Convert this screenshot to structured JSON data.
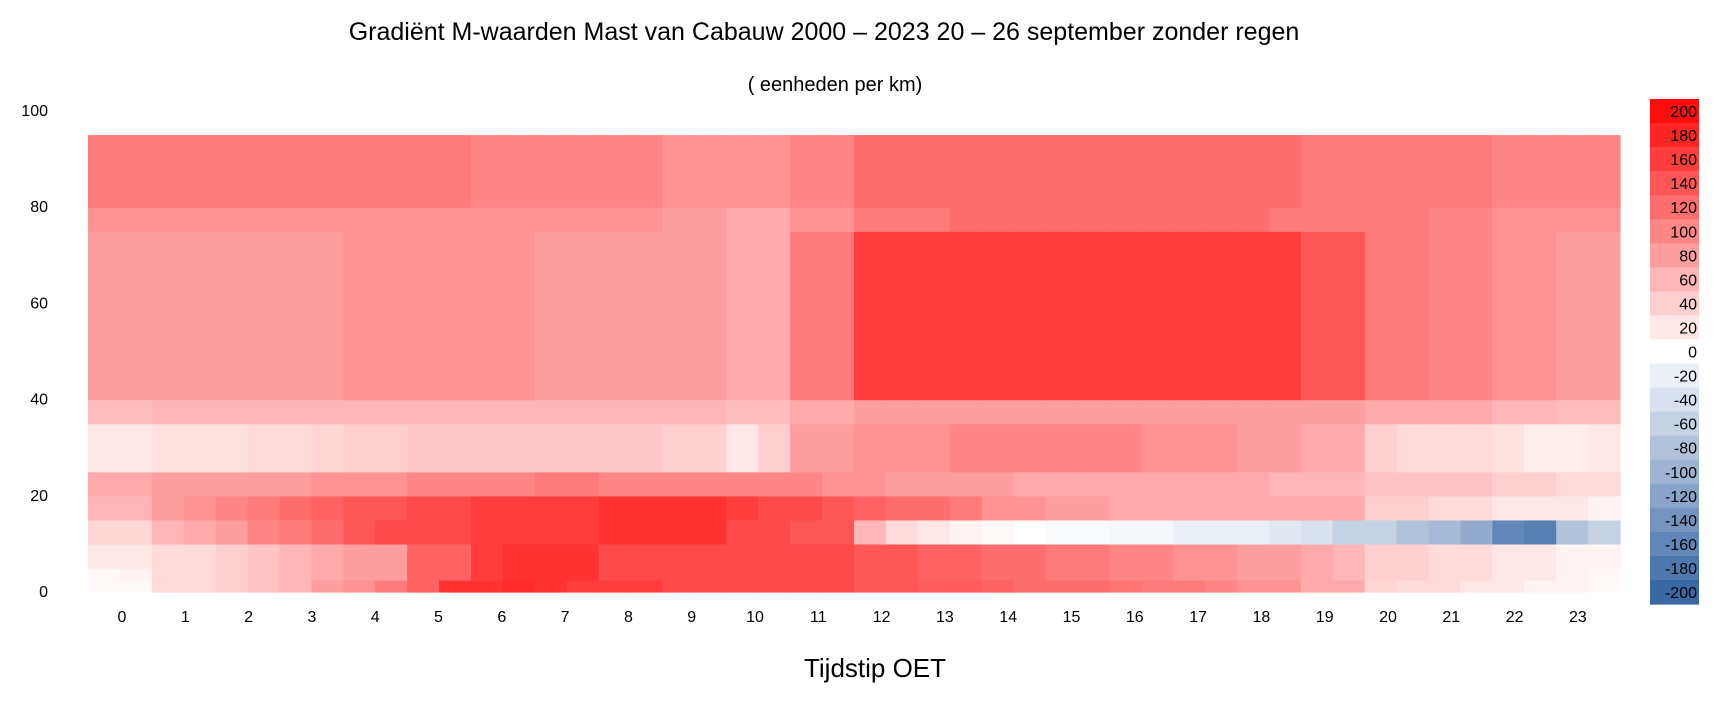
{
  "chart_data": {
    "type": "heatmap",
    "title": "Gradiënt M-waarden Mast van Cabauw 2000 – 2023  20 – 26 september zonder regen",
    "subtitle": "( eenheden per km)",
    "xlabel": "Tijdstip OET",
    "ylabel": "",
    "x_categories": [
      "0",
      "1",
      "2",
      "3",
      "4",
      "5",
      "6",
      "7",
      "8",
      "9",
      "10",
      "11",
      "12",
      "13",
      "14",
      "15",
      "16",
      "17",
      "18",
      "19",
      "20",
      "21",
      "22",
      "23"
    ],
    "y_ticks": [
      0,
      20,
      40,
      60,
      80,
      100
    ],
    "ylim": [
      0,
      100
    ],
    "layer_bounds": [
      0,
      2.5,
      5,
      10,
      15,
      20,
      25,
      35,
      40,
      75,
      80,
      95
    ],
    "value_matrix": [
      [
        5,
        5,
        30,
        30,
        40,
        50,
        60,
        80,
        90,
        110,
        130,
        170,
        170,
        175,
        170,
        160,
        160,
        160,
        150,
        150,
        150,
        150,
        150,
        150,
        140,
        140,
        135,
        135,
        130,
        120,
        120,
        120,
        115,
        110,
        110,
        100,
        90,
        90,
        70,
        70,
        35,
        30,
        30,
        20,
        20,
        10,
        10,
        5
      ],
      [
        5,
        10,
        30,
        30,
        40,
        50,
        60,
        70,
        80,
        80,
        130,
        130,
        160,
        170,
        170,
        170,
        150,
        150,
        150,
        150,
        150,
        150,
        150,
        150,
        140,
        140,
        130,
        130,
        120,
        120,
        110,
        110,
        100,
        100,
        90,
        90,
        80,
        80,
        70,
        60,
        40,
        40,
        30,
        30,
        20,
        20,
        10,
        5
      ],
      [
        20,
        20,
        30,
        30,
        40,
        50,
        60,
        70,
        80,
        80,
        130,
        130,
        160,
        170,
        170,
        170,
        150,
        150,
        150,
        150,
        150,
        150,
        150,
        150,
        140,
        140,
        130,
        130,
        120,
        120,
        110,
        110,
        100,
        100,
        90,
        90,
        80,
        80,
        70,
        60,
        40,
        40,
        30,
        30,
        20,
        20,
        10,
        10
      ],
      [
        35,
        35,
        60,
        70,
        80,
        100,
        110,
        120,
        140,
        150,
        150,
        150,
        160,
        160,
        160,
        160,
        170,
        170,
        170,
        170,
        150,
        150,
        140,
        140,
        60,
        30,
        20,
        10,
        5,
        0,
        -5,
        -5,
        -10,
        -10,
        -20,
        -20,
        -20,
        -30,
        -40,
        -60,
        -60,
        -80,
        -90,
        -110,
        -160,
        -170,
        -80,
        -60
      ],
      [
        60,
        60,
        80,
        90,
        100,
        110,
        120,
        130,
        140,
        140,
        150,
        150,
        160,
        160,
        160,
        160,
        170,
        170,
        170,
        170,
        160,
        150,
        150,
        140,
        130,
        120,
        120,
        110,
        90,
        90,
        80,
        80,
        70,
        70,
        70,
        70,
        70,
        70,
        70,
        70,
        40,
        40,
        30,
        30,
        20,
        20,
        20,
        10
      ],
      [
        70,
        70,
        80,
        80,
        80,
        80,
        80,
        90,
        90,
        90,
        100,
        100,
        100,
        100,
        110,
        110,
        100,
        100,
        100,
        100,
        100,
        100,
        100,
        90,
        90,
        80,
        80,
        80,
        80,
        70,
        70,
        70,
        70,
        70,
        70,
        70,
        70,
        60,
        60,
        60,
        50,
        50,
        50,
        50,
        40,
        40,
        30,
        30
      ],
      [
        20,
        20,
        25,
        25,
        25,
        30,
        30,
        35,
        40,
        40,
        45,
        45,
        45,
        45,
        45,
        45,
        45,
        45,
        40,
        40,
        20,
        40,
        80,
        80,
        90,
        90,
        90,
        100,
        100,
        100,
        100,
        100,
        100,
        90,
        90,
        90,
        80,
        80,
        70,
        70,
        40,
        30,
        30,
        30,
        25,
        15,
        15,
        20
      ],
      [
        55,
        55,
        60,
        60,
        60,
        60,
        60,
        60,
        60,
        60,
        60,
        60,
        60,
        60,
        60,
        60,
        60,
        60,
        60,
        60,
        55,
        55,
        70,
        70,
        80,
        80,
        80,
        80,
        80,
        80,
        80,
        80,
        80,
        80,
        80,
        80,
        80,
        80,
        80,
        80,
        70,
        70,
        70,
        70,
        60,
        60,
        55,
        55
      ],
      [
        80,
        80,
        80,
        80,
        80,
        80,
        80,
        80,
        90,
        90,
        90,
        90,
        90,
        90,
        80,
        80,
        80,
        80,
        80,
        80,
        70,
        70,
        110,
        110,
        160,
        160,
        160,
        160,
        160,
        160,
        160,
        160,
        160,
        160,
        160,
        160,
        160,
        160,
        140,
        140,
        110,
        110,
        100,
        100,
        90,
        90,
        80,
        80
      ],
      [
        90,
        90,
        90,
        90,
        90,
        90,
        90,
        90,
        90,
        90,
        90,
        90,
        90,
        90,
        90,
        90,
        90,
        90,
        80,
        80,
        70,
        70,
        90,
        90,
        110,
        110,
        110,
        120,
        120,
        120,
        120,
        120,
        120,
        120,
        120,
        120,
        120,
        110,
        110,
        110,
        110,
        110,
        100,
        100,
        90,
        90,
        90,
        90
      ],
      [
        110,
        110,
        110,
        110,
        110,
        110,
        110,
        110,
        110,
        110,
        110,
        110,
        100,
        100,
        100,
        100,
        100,
        100,
        90,
        90,
        90,
        90,
        100,
        100,
        120,
        120,
        120,
        120,
        120,
        120,
        120,
        120,
        120,
        120,
        120,
        120,
        120,
        120,
        110,
        110,
        110,
        110,
        110,
        110,
        100,
        100,
        100,
        100
      ]
    ],
    "colorbar": {
      "labels": [
        "200",
        "180",
        "160",
        "140",
        "120",
        "100",
        "80",
        "60",
        "40",
        "20",
        "0",
        "-20",
        "-40",
        "-60",
        "-80",
        "-100",
        "-120",
        "-140",
        "-160",
        "-180",
        "-200"
      ],
      "range": [
        -200,
        200
      ],
      "positive_color": "#ff0d0d",
      "negative_color": "#3a68a5",
      "zero_color": "#ffffff"
    }
  }
}
